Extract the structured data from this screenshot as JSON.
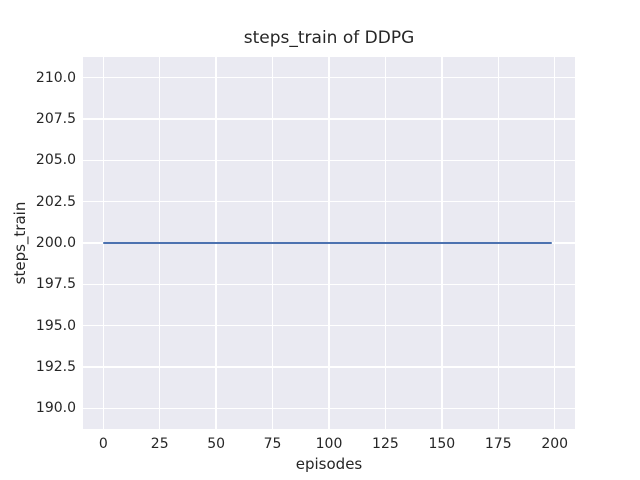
{
  "chart_data": {
    "type": "line",
    "title": "steps_train of DDPG",
    "xlabel": "episodes",
    "ylabel": "steps_train",
    "x_ticks": [
      0,
      25,
      50,
      75,
      100,
      125,
      150,
      175,
      200
    ],
    "y_ticks": [
      190.0,
      192.5,
      195.0,
      197.5,
      200.0,
      202.5,
      205.0,
      207.5,
      210.0
    ],
    "y_tick_decimals": 1,
    "x_tick_decimals": 0,
    "xlim": [
      -9,
      209
    ],
    "ylim": [
      188.75,
      211.25
    ],
    "grid": true,
    "legend_visible": false,
    "series": [
      {
        "name": "steps_train",
        "color": "#4c72b0",
        "x": [
          0,
          199
        ],
        "y": [
          200,
          200
        ],
        "note": "constant value 200 for every episode from 0 to 199"
      }
    ]
  },
  "colors": {
    "figure_background": "#ffffff",
    "axes_background": "#eaeaf2",
    "gridline": "#ffffff",
    "text": "#262626",
    "line": "#4c72b0"
  }
}
